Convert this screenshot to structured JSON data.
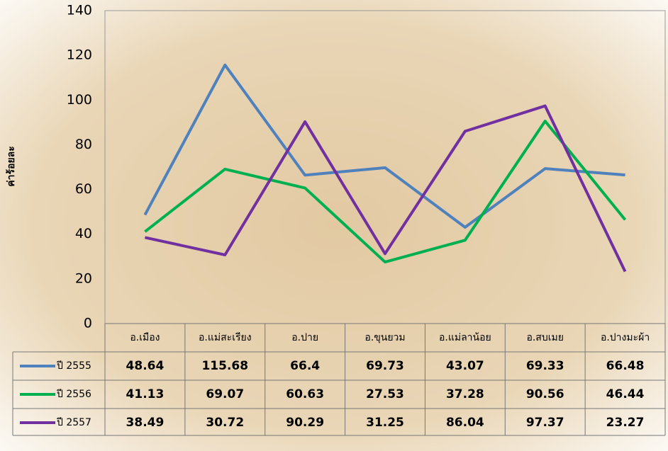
{
  "chart_data": {
    "type": "line",
    "y_label": "ค่าร้อยละ",
    "categories": [
      "อ.เมือง",
      "อ.แม่สะเรียง",
      "อ.ปาย",
      "อ.ขุนยวม",
      "อ.แม่ลาน้อย",
      "อ.สบเมย",
      "อ.ปางมะผ้า"
    ],
    "series": [
      {
        "name": "ปี 2555",
        "color": "#4f81bd",
        "values": [
          48.64,
          115.68,
          66.4,
          69.73,
          43.07,
          69.33,
          66.48
        ]
      },
      {
        "name": "ปี 2556",
        "color": "#00b050",
        "values": [
          41.13,
          69.07,
          60.63,
          27.53,
          37.28,
          90.56,
          46.44
        ]
      },
      {
        "name": "ปี 2557",
        "color": "#7030a0",
        "values": [
          38.49,
          30.72,
          90.29,
          31.25,
          86.04,
          97.37,
          23.27
        ]
      }
    ],
    "ylim": [
      0,
      140
    ],
    "yticks": [
      0,
      20,
      40,
      60,
      80,
      100,
      120,
      140
    ],
    "grid": false
  }
}
